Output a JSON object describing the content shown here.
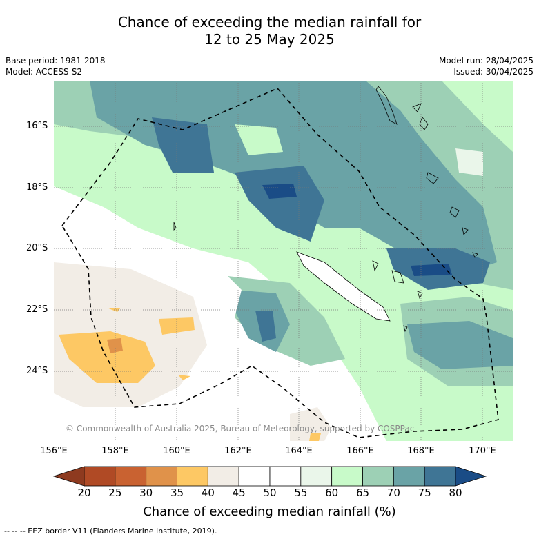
{
  "title": {
    "line1": "Chance of exceeding the median rainfall for",
    "line2": "12 to 25 May 2025"
  },
  "meta": {
    "base_period": "Base period: 1981-2018",
    "model": "Model: ACCESS-S2",
    "model_run": "Model run: 28/04/2025",
    "issued": "Issued: 30/04/2025"
  },
  "latitude_labels": [
    "16°S",
    "18°S",
    "20°S",
    "22°S",
    "24°S"
  ],
  "longitude_labels": [
    "156°E",
    "158°E",
    "160°E",
    "162°E",
    "164°E",
    "166°E",
    "168°E",
    "170°E"
  ],
  "colorbar": {
    "ticks": [
      "20",
      "25",
      "30",
      "35",
      "40",
      "45",
      "50",
      "55",
      "60",
      "65",
      "70",
      "75",
      "80"
    ],
    "colors": [
      "#8e3a1f",
      "#b04a25",
      "#c96231",
      "#e0924a",
      "#fdc864",
      "#f2ede6",
      "#ffffff",
      "#ffffff",
      "#eaf6ea",
      "#c8fac9",
      "#9dd0b5",
      "#6aa3a6",
      "#3f7595",
      "#1a4c86"
    ],
    "title": "Chance of exceeding median rainfall (%)"
  },
  "copyright": "© Commonwealth of Australia 2025, Bureau of Meteorology, supported by COSPPac",
  "footer": "--  --  -- EEZ border V11 (Flanders Marine Institute, 2019)."
}
